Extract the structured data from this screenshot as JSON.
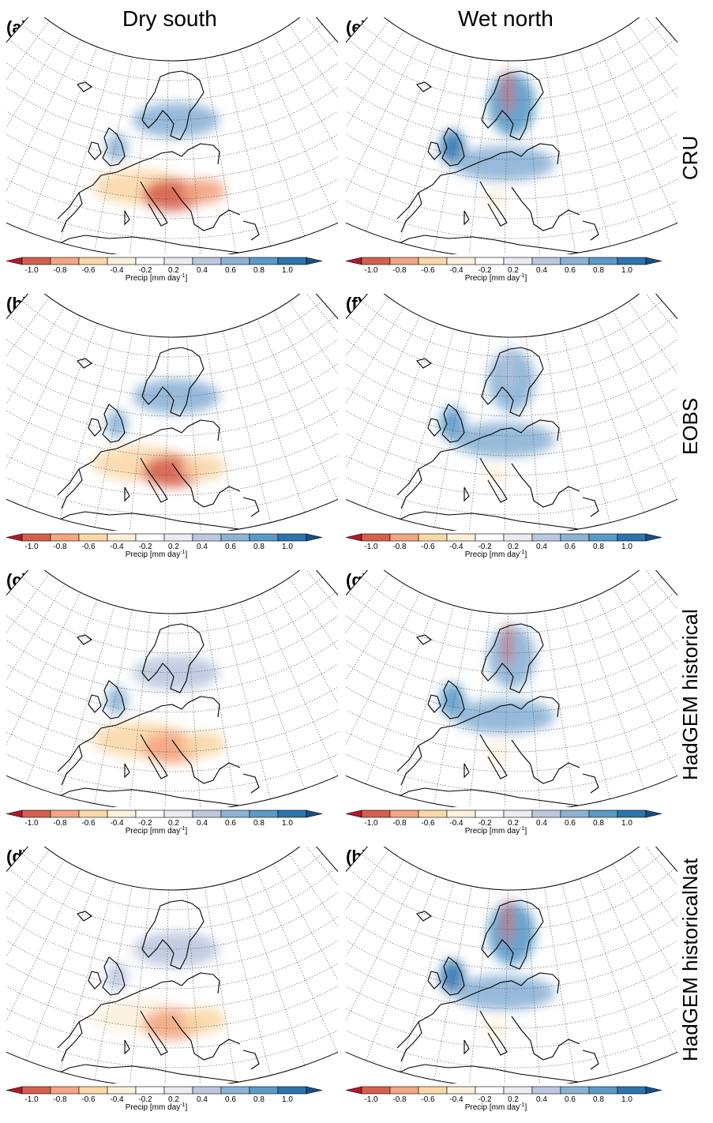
{
  "column_titles": [
    "Dry south",
    "Wet north"
  ],
  "row_titles": [
    "CRU",
    "EOBS",
    "HadGEM historical",
    "HadGEM historicalNat"
  ],
  "panels": [
    {
      "label": "(a)",
      "pattern": "dry-south",
      "strength": 1.0
    },
    {
      "label": "(b)",
      "pattern": "dry-south",
      "strength": 0.95
    },
    {
      "label": "(c)",
      "pattern": "dry-south",
      "strength": 0.75
    },
    {
      "label": "(d)",
      "pattern": "dry-south",
      "strength": 0.7
    },
    {
      "label": "(e)",
      "pattern": "wet-north",
      "strength": 1.0
    },
    {
      "label": "(f)",
      "pattern": "wet-north",
      "strength": 0.85
    },
    {
      "label": "(g)",
      "pattern": "wet-north",
      "strength": 0.9
    },
    {
      "label": "(h)",
      "pattern": "wet-north",
      "strength": 1.0
    }
  ],
  "colorbar": {
    "ticks": [
      "-1.0",
      "-0.8",
      "-0.6",
      "-0.4",
      "-0.2",
      "0.2",
      "0.4",
      "0.6",
      "0.8",
      "1.0"
    ],
    "label": "Precip [mm day",
    "label_sup": "-1",
    "label_end": "]",
    "colors": [
      "#b2182b",
      "#d6604d",
      "#f4a582",
      "#fbd8a8",
      "#fdf1dd",
      "#ffffff",
      "#eceaf3",
      "#bcc8df",
      "#8cb3d6",
      "#5a9ac8",
      "#2b74b0",
      "#184e86"
    ]
  }
}
